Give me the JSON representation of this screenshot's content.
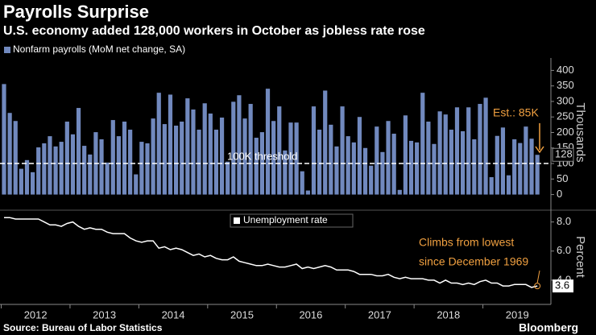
{
  "title": "Payrolls Surprise",
  "subtitle": "U.S. economy added 128,000 workers in October as jobless rate rose",
  "source": "Source: Bureau of Labor Statistics",
  "brand": "Bloomberg",
  "xlabels": [
    "2012",
    "2013",
    "2014",
    "2015",
    "2016",
    "2017",
    "2018",
    "2019"
  ],
  "chart_data": [
    {
      "type": "bar",
      "legend": "Nonfarm payrolls (MoM net change, SA)",
      "ylabel": "Thousands",
      "color": "#7189be",
      "ylim": [
        -40,
        440
      ],
      "yticks": [
        0,
        50,
        100,
        150,
        200,
        250,
        300,
        350,
        400
      ],
      "threshold": 100,
      "threshold_label": "100K threshold",
      "annotation": "Est.: 85K",
      "values": [
        356,
        263,
        237,
        83,
        111,
        72,
        152,
        165,
        188,
        155,
        170,
        235,
        194,
        279,
        157,
        129,
        201,
        178,
        103,
        240,
        188,
        235,
        209,
        65,
        170,
        165,
        245,
        328,
        227,
        322,
        222,
        235,
        310,
        274,
        209,
        294,
        261,
        209,
        248,
        106,
        299,
        320,
        245,
        292,
        183,
        201,
        341,
        237,
        284,
        142,
        232,
        232,
        75,
        13,
        284,
        209,
        335,
        225,
        155,
        284,
        188,
        168,
        250,
        150,
        93,
        219,
        137,
        237,
        196,
        15,
        255,
        173,
        168,
        328,
        235,
        163,
        268,
        258,
        209,
        281,
        204,
        281,
        178,
        292,
        312,
        56,
        189,
        216,
        62,
        178,
        166,
        219,
        180,
        128
      ]
    },
    {
      "type": "line",
      "legend": "Unemployment rate",
      "ylabel": "Percent",
      "color": "#ffffff",
      "ylim": [
        2.5,
        8.7
      ],
      "yticks": [
        {
          "value": 4,
          "label": "4.0"
        },
        {
          "value": 6,
          "label": "6.0"
        },
        {
          "value": 8,
          "label": "8.0"
        }
      ],
      "annotation": [
        "Climbs from lowest",
        "since December 1969"
      ],
      "values": [
        8.3,
        8.3,
        8.2,
        8.2,
        8.2,
        8.2,
        8.2,
        8.0,
        7.8,
        7.8,
        7.7,
        7.9,
        8.0,
        7.7,
        7.5,
        7.6,
        7.5,
        7.5,
        7.3,
        7.2,
        7.2,
        7.2,
        6.9,
        6.7,
        6.6,
        6.7,
        6.7,
        6.2,
        6.3,
        6.1,
        6.2,
        6.1,
        5.9,
        5.7,
        5.8,
        5.6,
        5.7,
        5.5,
        5.4,
        5.4,
        5.6,
        5.3,
        5.2,
        5.1,
        5.0,
        5.0,
        5.1,
        5.0,
        4.9,
        4.9,
        5.0,
        5.1,
        4.8,
        4.9,
        4.8,
        4.9,
        5.0,
        4.9,
        4.7,
        4.7,
        4.7,
        4.6,
        4.4,
        4.4,
        4.4,
        4.3,
        4.3,
        4.4,
        4.2,
        4.1,
        4.2,
        4.1,
        4.1,
        4.1,
        4.0,
        4.0,
        3.8,
        4.0,
        3.8,
        3.8,
        3.7,
        3.8,
        3.7,
        3.9,
        4.0,
        3.8,
        3.8,
        3.6,
        3.6,
        3.7,
        3.7,
        3.7,
        3.5,
        3.6
      ]
    }
  ]
}
